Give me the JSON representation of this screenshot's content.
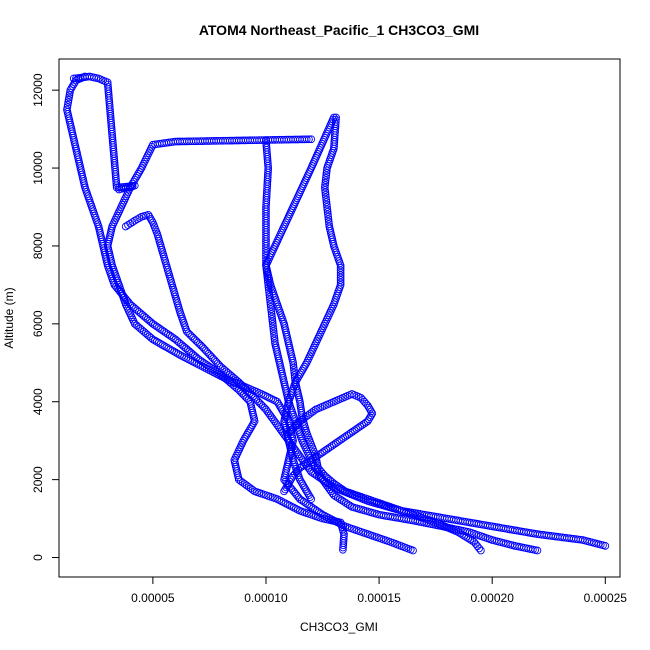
{
  "chart_data": {
    "type": "scatter",
    "title": "ATOM4 Northeast_Pacific_1 CH3CO3_GMI",
    "xlabel": "CH3CO3_GMI",
    "ylabel": "Altitude (m)",
    "xlim": [
      8.5e-06,
      0.0002565
    ],
    "ylim": [
      -500,
      12800
    ],
    "x_ticks": [
      5e-05,
      0.0001,
      0.00015,
      0.0002,
      0.00025
    ],
    "x_tick_labels": [
      "0.00005",
      "0.00010",
      "0.00015",
      "0.00020",
      "0.00025"
    ],
    "y_ticks": [
      0,
      2000,
      4000,
      6000,
      8000,
      10000,
      12000
    ],
    "y_tick_labels": [
      "0",
      "2000",
      "4000",
      "6000",
      "8000",
      "10000",
      "12000"
    ],
    "grid": false,
    "marker": "open-circle",
    "color": "#0000ff",
    "series": [
      {
        "x": [
          0.000134,
          0.0001345,
          0.000133,
          0.000125,
          0.000115,
          0.000105,
          9.5e-05,
          8.8e-05,
          8.6e-05,
          9e-05,
          9.5e-05,
          9.3e-05,
          8.8e-05,
          8e-05,
          7e-05,
          6e-05,
          5e-05,
          4e-05,
          3.3e-05,
          3e-05,
          2.8e-05,
          2.6e-05,
          2.3e-05,
          2e-05,
          1.8e-05,
          1.6e-05,
          1.4e-05,
          1.2e-05,
          1.35e-05,
          1.6e-05,
          2e-05
        ],
        "y": [
          200,
          600,
          900,
          1000,
          1200,
          1500,
          1700,
          2000,
          2500,
          3000,
          3500,
          4000,
          4300,
          4700,
          5100,
          5600,
          6000,
          6500,
          7000,
          7500,
          8000,
          8500,
          9000,
          9500,
          10000,
          10500,
          11000,
          11500,
          12000,
          12250,
          12350
        ]
      },
      {
        "x": [
          0.000165,
          0.000155,
          0.000145,
          0.000135,
          0.000125,
          0.000115,
          0.000108,
          0.00011,
          0.000112,
          0.00011,
          0.000105,
          9.8e-05,
          9e-05,
          8.2e-05,
          7.2e-05,
          6.2e-05,
          5e-05,
          4.2e-05,
          3.8e-05,
          3.5e-05,
          3.2e-05,
          3e-05,
          3.2e-05,
          3.6e-05,
          4e-05,
          4.5e-05,
          5e-05,
          6e-05,
          8e-05,
          0.0001,
          0.00012
        ],
        "y": [
          180,
          400,
          600,
          800,
          1100,
          1500,
          2000,
          2500,
          3000,
          3500,
          4000,
          4200,
          4400,
          4600,
          4900,
          5200,
          5600,
          6000,
          6500,
          7000,
          7500,
          8000,
          8500,
          9000,
          9500,
          10000,
          10600,
          10680,
          10700,
          10720,
          10740
        ]
      },
      {
        "x": [
          0.00025,
          0.00024,
          0.00022,
          0.0002,
          0.00018,
          0.00016,
          0.000145,
          0.00013,
          0.00012,
          0.000115,
          0.00011,
          0.000105,
          0.0001,
          9.5e-05,
          8.8e-05,
          8e-05,
          7.2e-05,
          6.5e-05,
          6.2e-05,
          6e-05,
          5.8e-05,
          5.6e-05,
          5.4e-05,
          5.2e-05,
          5e-05,
          4.8e-05,
          4.5e-05,
          4.2e-05,
          3.8e-05
        ],
        "y": [
          300,
          450,
          600,
          800,
          1000,
          1200,
          1450,
          1800,
          2200,
          2600,
          3000,
          3400,
          3800,
          4100,
          4500,
          4900,
          5400,
          5800,
          6300,
          6700,
          7100,
          7500,
          7900,
          8300,
          8600,
          8800,
          8750,
          8650,
          8500
        ]
      },
      {
        "x": [
          0.00022,
          0.00021,
          0.0002,
          0.00019,
          0.000178,
          0.000165,
          0.00015,
          0.000138,
          0.00013,
          0.000125,
          0.00012,
          0.000116,
          0.000113,
          0.00011,
          0.000108,
          0.000106,
          0.000104,
          0.000103,
          0.000102,
          0.000101,
          0.0001,
          0.0001,
          0.0001,
          0.000101,
          0.0001
        ],
        "y": [
          180,
          300,
          450,
          650,
          800,
          950,
          1100,
          1300,
          1600,
          2000,
          2500,
          3000,
          3500,
          4000,
          4500,
          5000,
          5500,
          6000,
          6500,
          7000,
          7500,
          8000,
          9000,
          10000,
          10700
        ]
      },
      {
        "x": [
          0.000195,
          0.000192,
          0.000185,
          0.000175,
          0.000165,
          0.000155,
          0.000145,
          0.000135,
          0.00013,
          0.000126,
          0.000123,
          0.000122,
          0.00012,
          0.000118,
          0.000116,
          0.000115,
          0.000113,
          0.000112,
          0.00011,
          0.000108,
          0.000105,
          0.000102,
          0.0001,
          0.000108,
          0.00012,
          0.00013
        ],
        "y": [
          180,
          400,
          650,
          900,
          1100,
          1300,
          1500,
          1700,
          1900,
          2100,
          2300,
          2600,
          2900,
          3200,
          3600,
          4000,
          4500,
          5000,
          5500,
          6000,
          6500,
          7000,
          7500,
          8500,
          10000,
          11300
        ]
      },
      {
        "x": [
          0.00012,
          0.000115,
          0.000112,
          0.00011,
          0.000108,
          0.00011,
          0.000113,
          0.000118,
          0.000122,
          0.000126,
          0.00013,
          0.000133,
          0.000133,
          0.00013,
          0.000128,
          0.000127,
          0.000126,
          0.000127,
          0.00013,
          0.000131
        ],
        "y": [
          1500,
          2000,
          2500,
          3000,
          3500,
          4000,
          4500,
          5000,
          5500,
          6000,
          6500,
          7000,
          7500,
          8000,
          8500,
          9000,
          9500,
          10000,
          10500,
          11300
        ]
      },
      {
        "x": [
          0.00011,
          0.000115,
          0.000122,
          0.00013,
          0.000138,
          0.000142,
          0.000145,
          0.000147,
          0.000145,
          0.00014,
          0.000135,
          0.00013,
          0.000125,
          0.00012,
          0.000115,
          0.000112,
          0.00011,
          0.000108
        ],
        "y": [
          3200,
          3500,
          3800,
          4000,
          4200,
          4100,
          3900,
          3700,
          3500,
          3300,
          3100,
          2900,
          2700,
          2500,
          2300,
          2100,
          1900,
          1700
        ]
      },
      {
        "x": [
          1.5e-05,
          1.8e-05,
          2.2e-05,
          2.6e-05,
          3e-05,
          3.4e-05,
          3.8e-05,
          4.2e-05,
          4e-05,
          3.7e-05,
          3.5e-05
        ],
        "y": [
          12300,
          12320,
          12350,
          12300,
          12200,
          9500,
          9520,
          9550,
          9500,
          9480,
          9450
        ]
      }
    ]
  }
}
